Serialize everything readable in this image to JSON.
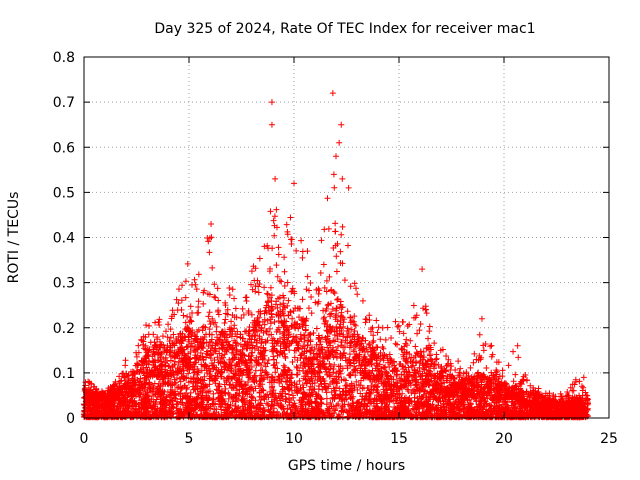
{
  "chart_data": {
    "type": "scatter",
    "title": "Day 325 of 2024, Rate Of TEC Index for receiver mac1",
    "xlabel": "GPS time / hours",
    "ylabel": "ROTI / TECUs",
    "xlim": [
      0,
      25
    ],
    "ylim": [
      0,
      0.8
    ],
    "xticks": [
      "0",
      "5",
      "10",
      "15",
      "20",
      "25"
    ],
    "yticks": [
      "0",
      "0.1",
      "0.2",
      "0.3",
      "0.4",
      "0.5",
      "0.6",
      "0.7",
      "0.8"
    ],
    "grid": true,
    "marker": "+",
    "color": "#ff0000",
    "envelope": {
      "x": [
        0,
        0.5,
        1,
        1.5,
        2,
        2.5,
        3,
        3.5,
        4,
        4.5,
        5,
        5.5,
        6,
        6.5,
        7,
        7.5,
        8,
        8.5,
        9,
        9.5,
        10,
        10.5,
        11,
        11.5,
        12,
        12.5,
        13,
        13.5,
        14,
        14.5,
        15,
        15.5,
        16,
        16.5,
        17,
        17.5,
        18,
        18.5,
        19,
        19.5,
        20,
        20.5,
        21,
        21.5,
        22,
        22.5,
        23,
        23.5,
        24
      ],
      "upper": [
        0.1,
        0.07,
        0.06,
        0.08,
        0.14,
        0.15,
        0.22,
        0.22,
        0.22,
        0.32,
        0.36,
        0.33,
        0.43,
        0.25,
        0.3,
        0.24,
        0.34,
        0.36,
        0.52,
        0.42,
        0.52,
        0.38,
        0.35,
        0.48,
        0.52,
        0.44,
        0.3,
        0.25,
        0.23,
        0.2,
        0.23,
        0.21,
        0.33,
        0.2,
        0.16,
        0.12,
        0.13,
        0.14,
        0.22,
        0.15,
        0.1,
        0.16,
        0.1,
        0.07,
        0.06,
        0.05,
        0.06,
        0.09,
        0.05
      ],
      "typical": [
        0.04,
        0.03,
        0.03,
        0.04,
        0.05,
        0.06,
        0.08,
        0.09,
        0.09,
        0.1,
        0.11,
        0.1,
        0.12,
        0.1,
        0.11,
        0.1,
        0.11,
        0.13,
        0.15,
        0.14,
        0.15,
        0.12,
        0.08,
        0.13,
        0.15,
        0.13,
        0.1,
        0.09,
        0.08,
        0.07,
        0.07,
        0.07,
        0.08,
        0.07,
        0.06,
        0.05,
        0.05,
        0.05,
        0.05,
        0.05,
        0.04,
        0.04,
        0.03,
        0.03,
        0.025,
        0.02,
        0.02,
        0.025,
        0.02
      ]
    },
    "outliers": [
      {
        "x": 8.95,
        "y": 0.7
      },
      {
        "x": 8.95,
        "y": 0.65
      },
      {
        "x": 11.85,
        "y": 0.72
      },
      {
        "x": 12.25,
        "y": 0.65
      },
      {
        "x": 12.15,
        "y": 0.61
      },
      {
        "x": 12.0,
        "y": 0.58
      },
      {
        "x": 12.3,
        "y": 0.53
      },
      {
        "x": 9.1,
        "y": 0.53
      },
      {
        "x": 10.0,
        "y": 0.52
      },
      {
        "x": 11.9,
        "y": 0.54
      },
      {
        "x": 12.6,
        "y": 0.51
      },
      {
        "x": 6.05,
        "y": 0.43
      },
      {
        "x": 16.1,
        "y": 0.33
      },
      {
        "x": 18.95,
        "y": 0.22
      },
      {
        "x": 20.65,
        "y": 0.16
      },
      {
        "x": 23.8,
        "y": 0.09
      }
    ]
  }
}
